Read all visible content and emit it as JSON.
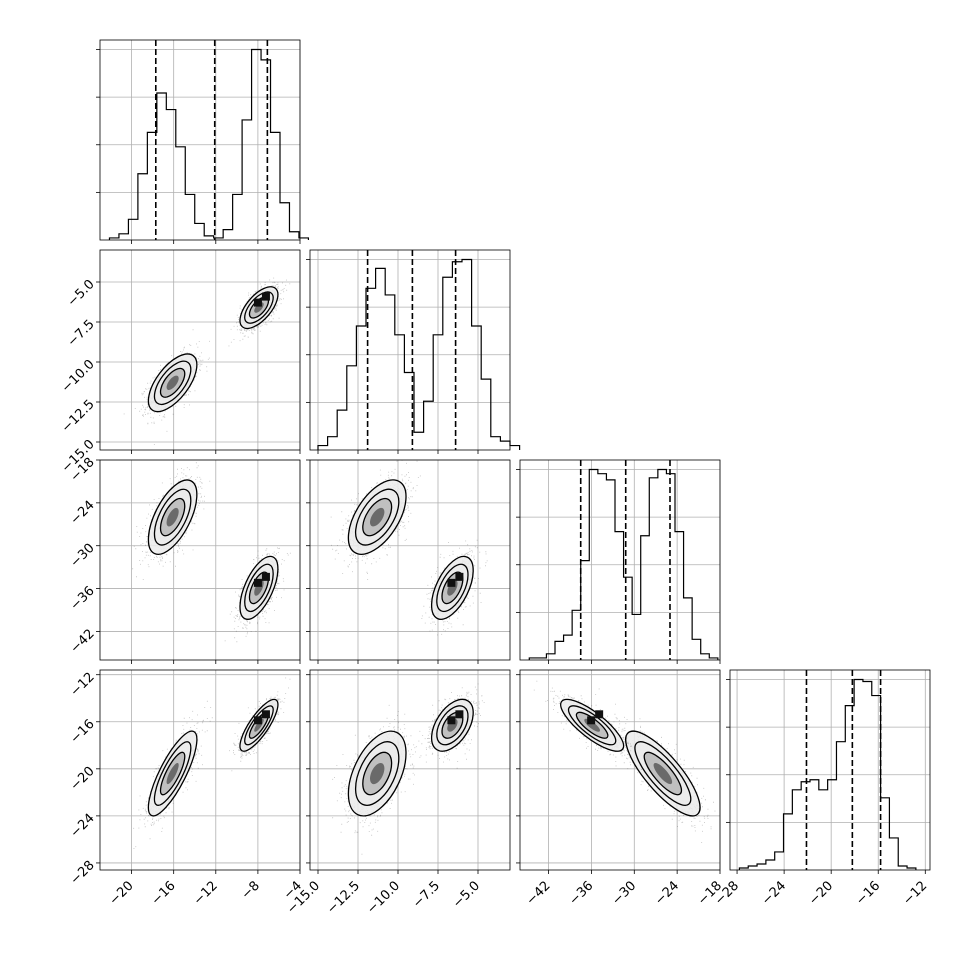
{
  "chart_data": {
    "type": "corner",
    "params": [
      {
        "range": [
          -23,
          -4
        ],
        "ticks": [
          -20,
          -16,
          -12,
          -8,
          -4
        ],
        "tick_labels": [
          "−20",
          "−16",
          "−12",
          "−8",
          "−4"
        ],
        "quantiles": [
          -17.7,
          -12.1,
          -7.1
        ],
        "hist": {
          "edges_start": -22.1,
          "bin_width": 0.9,
          "counts": [
            1,
            3,
            10,
            32,
            52,
            71,
            63,
            45,
            22,
            8,
            2,
            1,
            5,
            22,
            58,
            92,
            87,
            52,
            18,
            4,
            1
          ]
        }
      },
      {
        "range": [
          -15.5,
          -3
        ],
        "ticks": [
          -15.0,
          -12.5,
          -10.0,
          -7.5,
          -5.0
        ],
        "tick_labels": [
          "−15.0",
          "−12.5",
          "−10.0",
          "−7.5",
          "−5.0"
        ],
        "quantiles": [
          -11.9,
          -9.1,
          -6.4
        ],
        "hist": {
          "edges_start": -15.0,
          "bin_width": 0.6,
          "counts": [
            2,
            6,
            18,
            38,
            56,
            73,
            82,
            70,
            52,
            35,
            8,
            22,
            52,
            78,
            85,
            86,
            56,
            32,
            6,
            4,
            2
          ]
        }
      },
      {
        "range": [
          -46,
          -18
        ],
        "ticks": [
          -42,
          -36,
          -30,
          -24,
          -18
        ],
        "tick_labels": [
          "−42",
          "−36",
          "−30",
          "−24",
          "−18"
        ],
        "quantiles": [
          -37.5,
          -31.2,
          -25.0
        ],
        "hist": {
          "edges_start": -44.7,
          "bin_width": 1.2,
          "counts": [
            1,
            1,
            3,
            9,
            12,
            24,
            48,
            92,
            90,
            87,
            62,
            40,
            22,
            60,
            88,
            92,
            90,
            62,
            30,
            10,
            3,
            1
          ]
        }
      },
      {
        "range": [
          -28.6,
          -11.6
        ],
        "ticks": [
          -28,
          -24,
          -20,
          -16,
          -12
        ],
        "tick_labels": [
          "−28",
          "−24",
          "−20",
          "−16",
          "−12"
        ],
        "quantiles": [
          -22.1,
          -18.2,
          -15.8
        ],
        "hist": {
          "edges_start": -27.8,
          "bin_width": 0.75,
          "counts": [
            1,
            2,
            3,
            5,
            9,
            28,
            40,
            44,
            45,
            40,
            45,
            64,
            82,
            95,
            94,
            87,
            36,
            16,
            2,
            1
          ]
        }
      }
    ],
    "modes": [
      {
        "mean": [
          -16.1,
          -11.3,
          -26.0,
          -20.4
        ],
        "sd": [
          1.15,
          0.9,
          2.6,
          1.8
        ],
        "weight": 0.5
      },
      {
        "mean": [
          -7.9,
          -6.6,
          -35.9,
          -16.3
        ],
        "sd": [
          0.9,
          0.65,
          2.2,
          1.1
        ],
        "weight": 0.5
      }
    ],
    "correlation": [
      [
        1.0,
        0.62,
        0.6,
        0.8
      ],
      [
        0.62,
        1.0,
        0.55,
        0.48
      ],
      [
        0.6,
        0.55,
        1.0,
        -0.8
      ],
      [
        0.8,
        0.48,
        -0.8,
        1.0
      ]
    ],
    "sample_points_per_panel": 2200,
    "contour_levels": [
      0.5,
      1.0,
      1.5,
      2.0
    ],
    "grid": true,
    "colors": {
      "ink": "#000000",
      "grid": "#b0b0b0",
      "scatter": "#555555",
      "fill_light": "#ebebeb",
      "fill_mid": "#b8b8b8",
      "fill_dark": "#5a5a5a",
      "fill_core": "#111111"
    }
  }
}
